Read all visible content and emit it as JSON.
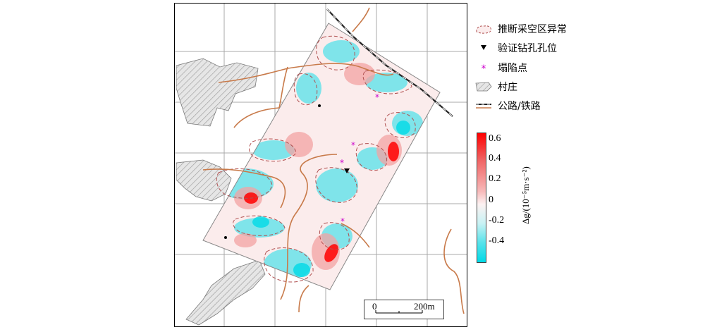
{
  "legend": {
    "items": [
      {
        "label": "推断采空区异常",
        "icon": "dashed-outline-icon"
      },
      {
        "label": "验证钻孔孔位",
        "icon": "triangle-down-icon"
      },
      {
        "label": "塌陷点",
        "icon": "asterisk-icon"
      },
      {
        "label": "村庄",
        "icon": "hatched-area-icon"
      },
      {
        "label": "公路/铁路",
        "icon": "road-railway-icon"
      }
    ]
  },
  "colorbar": {
    "ticks": [
      "0.6",
      "0.4",
      "0.2",
      "0",
      "-0.2",
      "-0.4"
    ],
    "label": "Δg/(10⁻⁵m·s⁻²)"
  },
  "scalebar": {
    "start": "0",
    "end": "200m"
  },
  "colors": {
    "positive": "#ff0000",
    "negative": "#00d9e6",
    "neutral": "#fdf2f2",
    "road": "#c87a4a",
    "collapse_point": "#cc00cc",
    "anomaly_outline": "#b05050"
  }
}
